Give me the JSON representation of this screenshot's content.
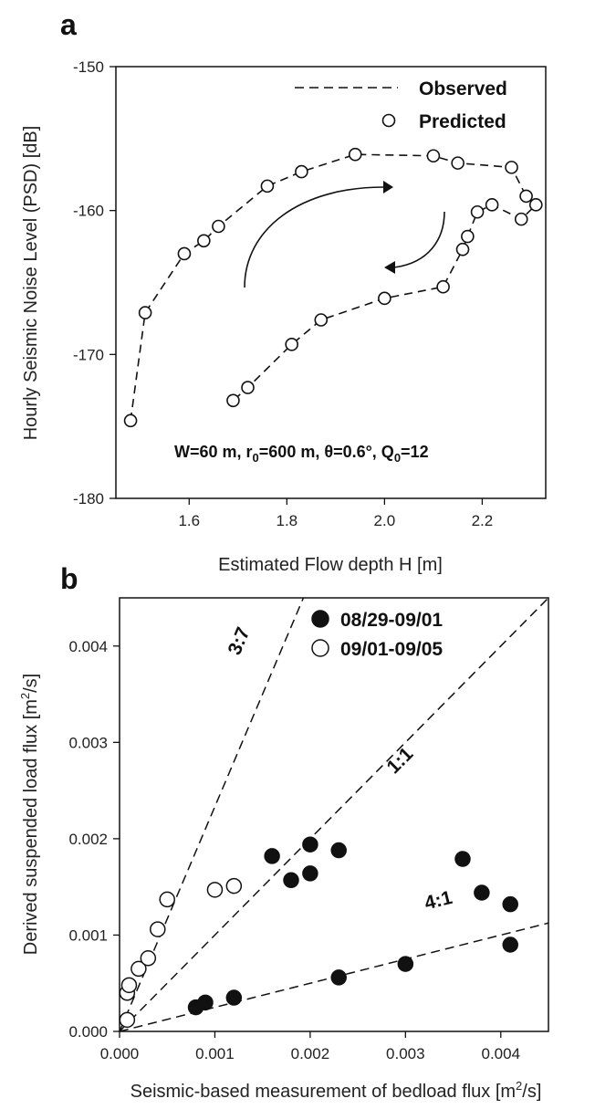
{
  "chart_data": [
    {
      "panel": "a",
      "type": "line",
      "xlabel": "Estimated Flow depth H [m]",
      "ylabel": "Hourly Seismic Noise Level (PSD) [dB]",
      "xlim": [
        1.45,
        2.33
      ],
      "ylim": [
        -180,
        -150
      ],
      "xticks": [
        "1.6",
        "1.8",
        "2.0",
        "2.2"
      ],
      "xtick_values": [
        1.6,
        1.8,
        2.0,
        2.2
      ],
      "yticks": [
        "-150",
        "-160",
        "-170",
        "-180"
      ],
      "ytick_values": [
        -150,
        -160,
        -170,
        -180
      ],
      "legend_position": "top-right",
      "annotation": "W=60 m, r",
      "annotation_parts": {
        "r_sub": "0",
        "mid": "=600 m, θ=0.6°, Q",
        "q_sub": "0",
        "end": "=12"
      },
      "series": [
        {
          "name": "Observed",
          "style": "dashed-line",
          "x": [
            1.48,
            1.51,
            1.59,
            1.63,
            1.66,
            1.76,
            1.83,
            1.94,
            2.1,
            2.15,
            2.26,
            2.29,
            2.31,
            2.28,
            2.22,
            2.19,
            2.17,
            2.16,
            2.12,
            2.0,
            1.87,
            1.81,
            1.72,
            1.69
          ],
          "y": [
            -174.6,
            -167.1,
            -163.0,
            -162.1,
            -161.1,
            -158.3,
            -157.3,
            -156.1,
            -156.2,
            -156.7,
            -157.0,
            -159.0,
            -159.6,
            -160.6,
            -159.6,
            -160.1,
            -161.8,
            -162.7,
            -165.3,
            -166.1,
            -167.6,
            -169.3,
            -172.3,
            -173.2
          ]
        },
        {
          "name": "Predicted",
          "style": "open-circle",
          "x": [
            1.48,
            1.51,
            1.59,
            1.63,
            1.66,
            1.76,
            1.83,
            1.94,
            2.1,
            2.15,
            2.26,
            2.29,
            2.31,
            2.28,
            2.22,
            2.19,
            2.17,
            2.16,
            2.12,
            2.0,
            1.87,
            1.81,
            1.72,
            1.69
          ],
          "y": [
            -174.6,
            -167.1,
            -163.0,
            -162.1,
            -161.1,
            -158.3,
            -157.3,
            -156.1,
            -156.2,
            -156.7,
            -157.0,
            -159.0,
            -159.6,
            -160.6,
            -159.6,
            -160.1,
            -161.8,
            -162.7,
            -165.3,
            -166.1,
            -167.6,
            -169.3,
            -172.3,
            -173.2
          ]
        }
      ]
    },
    {
      "panel": "b",
      "type": "scatter",
      "xlabel": "Seismic-based measurement of bedload flux [m",
      "xlabel_sup": "2",
      "xlabel_end": "/s]",
      "ylabel": "Derived suspended load flux [m",
      "ylabel_sup": "2",
      "ylabel_end": "/s]",
      "xlim": [
        0,
        0.0045
      ],
      "ylim": [
        0,
        0.0045
      ],
      "xticks": [
        "0.000",
        "0.001",
        "0.002",
        "0.003",
        "0.004"
      ],
      "xtick_values": [
        0,
        0.001,
        0.002,
        0.003,
        0.004
      ],
      "yticks": [
        "0.000",
        "0.001",
        "0.002",
        "0.003",
        "0.004"
      ],
      "ytick_values": [
        0,
        0.001,
        0.002,
        0.003,
        0.004
      ],
      "legend_position": "top-right",
      "reference_lines": [
        {
          "label": "3:7",
          "slope": 2.333
        },
        {
          "label": "1:1",
          "slope": 1.0
        },
        {
          "label": "4:1",
          "slope": 0.25
        }
      ],
      "series": [
        {
          "name": "08/29-09/01",
          "marker": "filled-circle",
          "x": [
            0.0008,
            0.0009,
            0.0012,
            0.0016,
            0.0018,
            0.002,
            0.002,
            0.0023,
            0.0023,
            0.003,
            0.0036,
            0.0038,
            0.0041,
            0.0041
          ],
          "y": [
            0.00025,
            0.0003,
            0.00035,
            0.00182,
            0.00157,
            0.00194,
            0.00164,
            0.00188,
            0.00056,
            0.0007,
            0.00179,
            0.00144,
            0.00132,
            0.0009
          ]
        },
        {
          "name": "09/01-09/05",
          "marker": "open-circle",
          "x": [
            8e-05,
            8e-05,
            0.0001,
            0.0002,
            0.0003,
            0.0004,
            0.0005,
            0.001,
            0.0012
          ],
          "y": [
            0.00012,
            0.0004,
            0.00048,
            0.00065,
            0.00076,
            0.00106,
            0.00137,
            0.00147,
            0.00151
          ]
        }
      ]
    }
  ]
}
